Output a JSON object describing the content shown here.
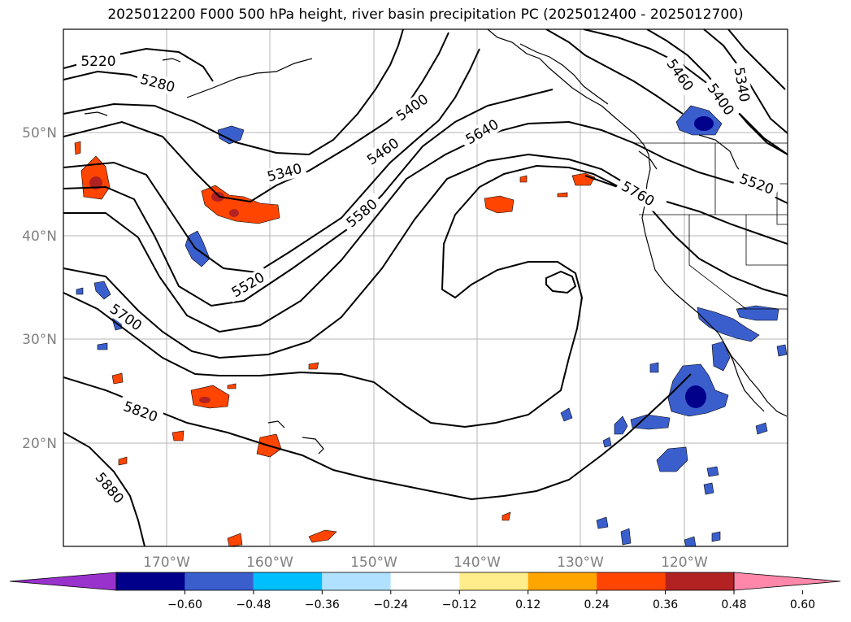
{
  "title": "2025012200 F000 500 hPa height, river basin precipitation PC (2025012400 - 2025012700)",
  "lat_labels": [
    "50°N",
    "40°N",
    "30°N",
    "20°N"
  ],
  "lon_labels": [
    "170°W",
    "160°W",
    "150°W",
    "140°W",
    "130°W",
    "120°W"
  ],
  "contour_labels": [
    "5220",
    "5280",
    "5340",
    "5400",
    "5460",
    "5520",
    "5580",
    "5640",
    "5700",
    "5760",
    "5820",
    "5880",
    "5460",
    "5400",
    "5340",
    "5520"
  ],
  "colorbar": {
    "ticks": [
      "−0.60",
      "−0.48",
      "−0.36",
      "−0.24",
      "−0.12",
      "0.12",
      "0.24",
      "0.36",
      "0.48",
      "0.60"
    ],
    "colors": [
      "#9932cc",
      "#00008b",
      "#3a5fcd",
      "#00bfff",
      "#b0e2ff",
      "#ffffff",
      "#ffec8b",
      "#ffa500",
      "#ff4500",
      "#b22222",
      "#ff88aa"
    ]
  }
}
